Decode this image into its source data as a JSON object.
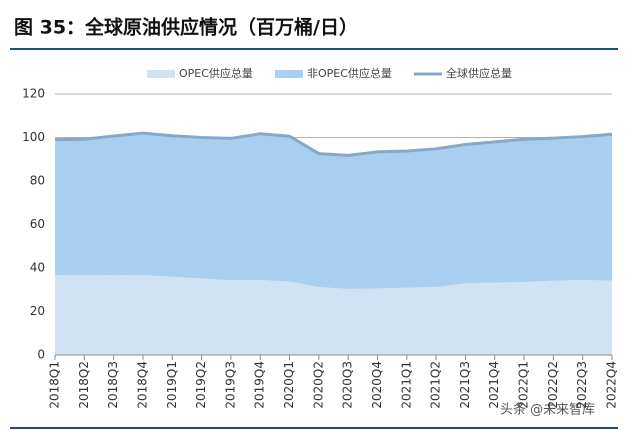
{
  "chart_data": {
    "type": "area",
    "title": "图 35：全球原油供应情况（百万桶/日）",
    "watermark": "头条 @未来智库",
    "categories": [
      "2018Q1",
      "2018Q2",
      "2018Q3",
      "2018Q4",
      "2019Q1",
      "2019Q2",
      "2019Q3",
      "2019Q4",
      "2020Q1",
      "2020Q2",
      "2020Q3",
      "2020Q4",
      "2021Q1",
      "2021Q2",
      "2021Q3",
      "2021Q4",
      "2022Q1",
      "2022Q2",
      "2022Q3",
      "2022Q4"
    ],
    "series": [
      {
        "name": "OPEC供应总量",
        "color": "#cfe3f5",
        "stacked": true,
        "values": [
          36.8,
          36.6,
          36.8,
          36.7,
          36.0,
          35.2,
          34.3,
          34.5,
          33.8,
          31.2,
          30.4,
          30.6,
          31.0,
          31.2,
          33.0,
          33.3,
          33.5,
          34.2,
          34.4,
          34.2
        ]
      },
      {
        "name": "非OPEC供应总量",
        "color": "#a9cff0",
        "stacked": true,
        "values": [
          62.2,
          62.6,
          63.9,
          65.3,
          64.8,
          64.8,
          65.3,
          67.2,
          66.8,
          61.4,
          61.4,
          62.8,
          62.8,
          63.6,
          63.8,
          64.7,
          65.7,
          65.5,
          66.0,
          67.3
        ]
      },
      {
        "name": "全球供应总量",
        "color": "#87a8c6",
        "type": "line",
        "values": [
          99.0,
          99.2,
          100.7,
          102.0,
          100.8,
          100.0,
          99.6,
          101.7,
          100.6,
          92.6,
          91.8,
          93.4,
          93.8,
          94.8,
          96.8,
          98.0,
          99.2,
          99.7,
          100.4,
          101.5
        ]
      }
    ],
    "ylim": [
      0,
      120
    ],
    "yticks": [
      0,
      20,
      40,
      60,
      80,
      100,
      120
    ],
    "grid": true,
    "legend": "top"
  }
}
